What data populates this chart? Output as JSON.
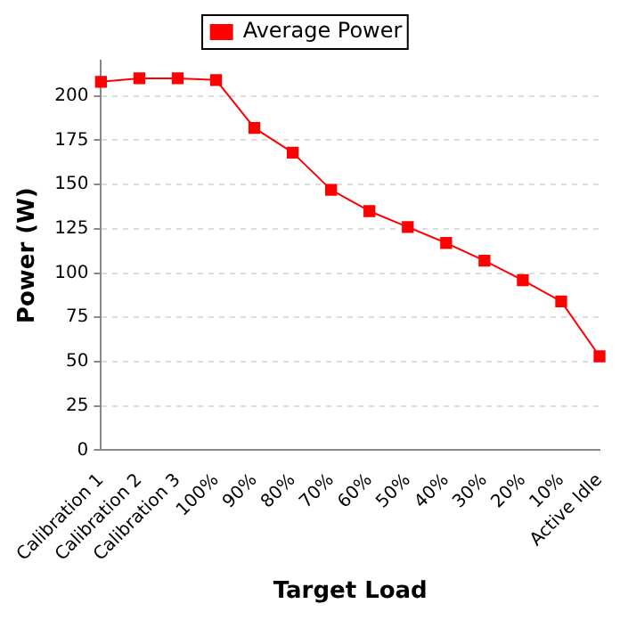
{
  "chart_data": {
    "type": "line",
    "xlabel": "Target Load",
    "ylabel": "Power (W)",
    "categories": [
      "Calibration 1",
      "Calibration 2",
      "Calibration 3",
      "100%",
      "90%",
      "80%",
      "70%",
      "60%",
      "50%",
      "40%",
      "30%",
      "20%",
      "10%",
      "Active Idle"
    ],
    "series": [
      {
        "name": "Average Power",
        "color": "#ff0000",
        "values": [
          208,
          210,
          210,
          209,
          182,
          168,
          147,
          135,
          126,
          117,
          107,
          96,
          84,
          53
        ]
      }
    ],
    "ylim": [
      0,
      220
    ],
    "yticks": [
      0,
      25,
      50,
      75,
      100,
      125,
      150,
      175,
      200
    ],
    "grid": "y",
    "legend": "top",
    "marker": "square",
    "line_style": "solid"
  }
}
